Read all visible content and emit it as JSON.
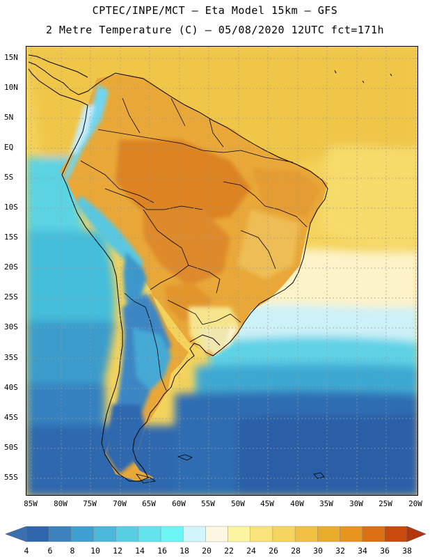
{
  "header": {
    "line1": "CPTEC/INPE/MCT –  Eta Model 15km – GFS",
    "line2": "2 Metre Temperature (C) – 05/08/2020 12UTC fct=171h"
  },
  "map": {
    "lat_labels": [
      "15N",
      "10N",
      "5N",
      "EQ",
      "5S",
      "10S",
      "15S",
      "20S",
      "25S",
      "30S",
      "35S",
      "40S",
      "45S",
      "50S",
      "55S"
    ],
    "lon_labels": [
      "85W",
      "80W",
      "75W",
      "70W",
      "65W",
      "60W",
      "55W",
      "50W",
      "45W",
      "40W",
      "35W",
      "30W",
      "25W",
      "20W"
    ],
    "lat_range": [
      17,
      -58.5
    ],
    "lon_range": [
      -86.5,
      -20.2
    ]
  },
  "colorbar": {
    "labels": [
      "4",
      "6",
      "8",
      "10",
      "12",
      "14",
      "16",
      "18",
      "20",
      "22",
      "24",
      "26",
      "28",
      "30",
      "32",
      "34",
      "36",
      "38"
    ],
    "colors": [
      "#3a6fb0",
      "#2f66ad",
      "#3b82be",
      "#3fa0cf",
      "#4bb8db",
      "#59cfe3",
      "#63e3ee",
      "#6cf5f5",
      "#d2f5fb",
      "#fdf8e4",
      "#fcf4a0",
      "#f7e37a",
      "#f6d55f",
      "#efc041",
      "#e8ad2a",
      "#e7951d",
      "#dc6f12",
      "#c84a0c",
      "#b4360d"
    ]
  }
}
